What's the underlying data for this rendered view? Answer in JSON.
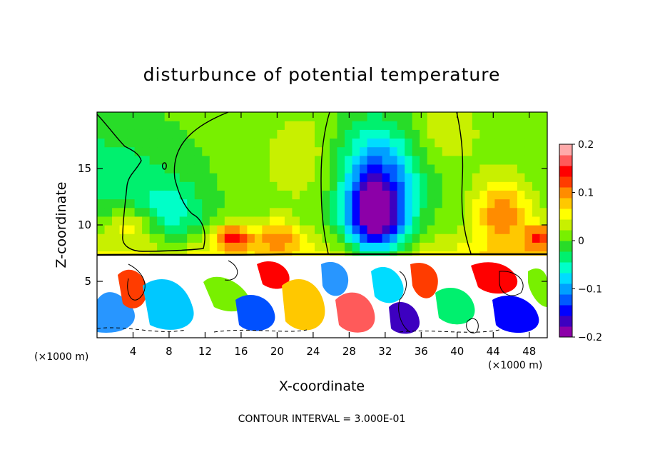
{
  "chart_data": {
    "type": "heatmap",
    "title": "disturbunce of potential temperature",
    "xlabel": "X-coordinate",
    "ylabel": "Z-coordinate",
    "x_unit_left": "(×1000 m)",
    "x_unit_right": "(×1000 m)",
    "xlim": [
      0,
      50
    ],
    "ylim": [
      0,
      20
    ],
    "x_ticks": [
      4,
      8,
      12,
      16,
      20,
      24,
      28,
      32,
      36,
      40,
      44,
      48
    ],
    "x_tick_labels": [
      "4",
      "8",
      "12",
      "16",
      "20",
      "24",
      "28",
      "32",
      "36",
      "40",
      "44",
      "48"
    ],
    "y_ticks": [
      5,
      10,
      15
    ],
    "y_tick_labels": [
      "5",
      "10",
      "15"
    ],
    "colorbar": {
      "min": -0.2,
      "max": 0.2,
      "ticks": [
        0.2,
        0.1,
        0,
        -0.1,
        -0.2
      ],
      "tick_labels": [
        "0.2",
        "0.1",
        "0",
        "−0.1",
        "−0.2"
      ],
      "colors": [
        "#8c00a8",
        "#3d00c0",
        "#0000ff",
        "#005aff",
        "#00a0ff",
        "#00dcff",
        "#00ffc8",
        "#00f06e",
        "#28dc28",
        "#78f000",
        "#c8f000",
        "#ffff00",
        "#ffc800",
        "#ff8c00",
        "#ff3c00",
        "#ff0000",
        "#ff5a5a",
        "#ffaaaa"
      ]
    },
    "fields": [
      {
        "name": "field",
        "x": 0,
        "z": 15,
        "sx": 10,
        "sz": 5,
        "value": -0.04
      },
      {
        "name": "field",
        "x": 8,
        "z": 11,
        "sx": 4,
        "sz": 3,
        "value": -0.06
      },
      {
        "name": "field",
        "x": 15,
        "z": 9,
        "sx": 2,
        "sz": 1.2,
        "value": 0.12
      },
      {
        "name": "field",
        "x": 20,
        "z": 9,
        "sx": 2.5,
        "sz": 1.5,
        "value": 0.08
      },
      {
        "name": "field",
        "x": 31,
        "z": 11,
        "sx": 3.5,
        "sz": 4,
        "value": -0.22
      },
      {
        "name": "field",
        "x": 31,
        "z": 16,
        "sx": 6,
        "sz": 4,
        "value": -0.08
      },
      {
        "name": "field",
        "x": 45,
        "z": 11,
        "sx": 3,
        "sz": 3,
        "value": 0.1
      },
      {
        "name": "field",
        "x": 49,
        "z": 9,
        "sx": 1.5,
        "sz": 1.2,
        "value": 0.1
      },
      {
        "name": "field",
        "x": 4,
        "z": 10,
        "sx": 3,
        "sz": 1.5,
        "value": 0.06
      },
      {
        "name": "field",
        "x": 24,
        "z": 16,
        "sx": 5,
        "sz": 4,
        "value": 0.04
      },
      {
        "name": "field",
        "x": 38,
        "z": 18,
        "sx": 4,
        "sz": 3,
        "value": 0.04
      }
    ],
    "annotation": "CONTOUR INTERVAL = 3.000E-01"
  }
}
